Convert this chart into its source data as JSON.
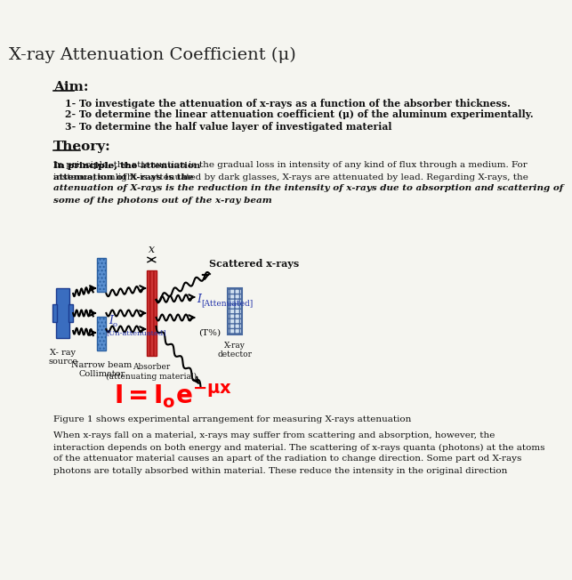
{
  "title": "X-ray Attenuation Coefficient (μ)",
  "aim_label": "Aim:",
  "aim_items": [
    "1- To investigate the attenuation of x-rays as a function of the absorber thickness.",
    "2- To determine the linear attenuation coefficient (μ) of the aluminum experimentally.",
    "3- To determine the half value layer of investigated material"
  ],
  "theory_label": "Theory:",
  "theory_line1": "In principle, the attenuation is the gradual loss in intensity of any kind of flux through a medium. For",
  "theory_line2": "instance, sunlight is attenuated by dark glasses, X-rays are attenuated by lead. Regarding X-rays, the",
  "theory_line3": "attenuation of X-rays is the reduction in the intensity of x-rays due to absorption and scattering of",
  "theory_line4": "some of the photons out of the x-ray beam",
  "figure_caption": "Figure 1 shows experimental arrangement for measuring X-rays attenuation",
  "bottom_lines": [
    "When x-rays fall on a material, x-rays may suffer from scattering and absorption, however, the",
    "interaction depends on both energy and material. The scattering of x-rays quanta (photons) at the atoms",
    "of the attenuator material causes an apart of the radiation to change direction. Some part od X-rays",
    "photons are totally absorbed within material. These reduce the intensity in the original direction"
  ],
  "bg_color": "#f5f5f0",
  "text_color": "#111111",
  "blue_color": "#2233aa",
  "src_color": "#3a6dbf",
  "col_color": "#5a8fd0",
  "abs_color": "#cc3333",
  "det_color": "#d0e0f0"
}
